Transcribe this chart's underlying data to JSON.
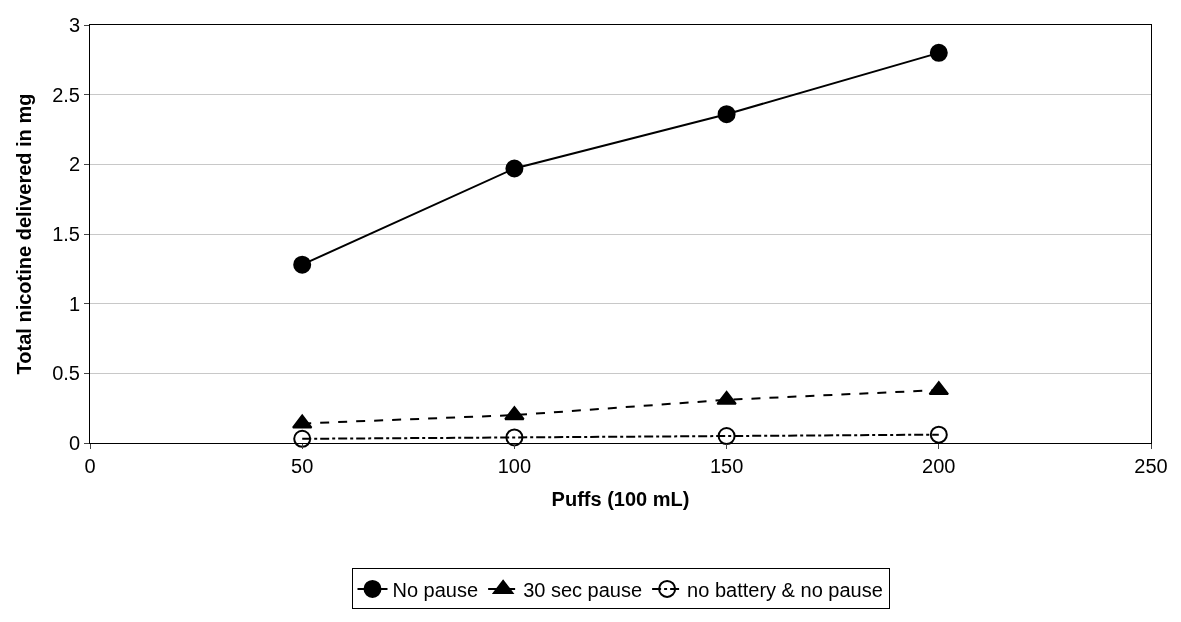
{
  "chart_data": {
    "type": "line",
    "xlabel": "Puffs (100 mL)",
    "ylabel": "Total nicotine delivered in mg",
    "x": [
      50,
      100,
      150,
      200
    ],
    "series": [
      {
        "name": "No pause",
        "color": "#000000",
        "values": [
          1.28,
          1.97,
          2.36,
          2.8
        ],
        "marker": "circle",
        "line_style": "solid"
      },
      {
        "name": "30 sec pause",
        "color": "#000000",
        "values": [
          0.14,
          0.2,
          0.31,
          0.38
        ],
        "marker": "triangle",
        "line_style": "dashed"
      },
      {
        "name": "no battery & no pause",
        "color": "#000000",
        "values": [
          0.03,
          0.04,
          0.05,
          0.06
        ],
        "marker": "circle-open",
        "line_style": "dashdot"
      }
    ],
    "xlim": [
      0,
      250
    ],
    "xticks": [
      0,
      50,
      100,
      150,
      200,
      250
    ],
    "ylim": [
      0,
      3
    ],
    "yticks": [
      0,
      0.5,
      1,
      1.5,
      2,
      2.5,
      3
    ],
    "grid": "y",
    "legend": "bottom"
  }
}
